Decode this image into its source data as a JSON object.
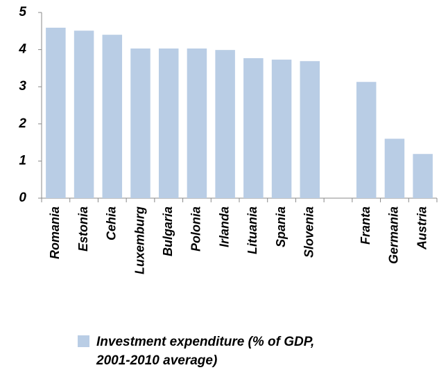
{
  "chart_data": {
    "type": "bar",
    "categories": [
      "Romania",
      "Estonia",
      "Cehia",
      "Luxemburg",
      "Bulgaria",
      "Polonia",
      "Irlanda",
      "Lituania",
      "Spania",
      "Slovenia",
      null,
      "Franta",
      "Germania",
      "Austria"
    ],
    "series": [
      {
        "name": "Investment expenditure (% of GDP, 2001-2010 average)",
        "color": "#b9cde5",
        "values": [
          4.59,
          4.51,
          4.4,
          4.03,
          4.03,
          4.03,
          3.99,
          3.77,
          3.73,
          3.69,
          null,
          3.13,
          1.6,
          1.19
        ]
      }
    ],
    "ylim": [
      0,
      5
    ],
    "yticks": [
      0,
      1,
      2,
      3,
      4,
      5
    ],
    "grid": false
  }
}
